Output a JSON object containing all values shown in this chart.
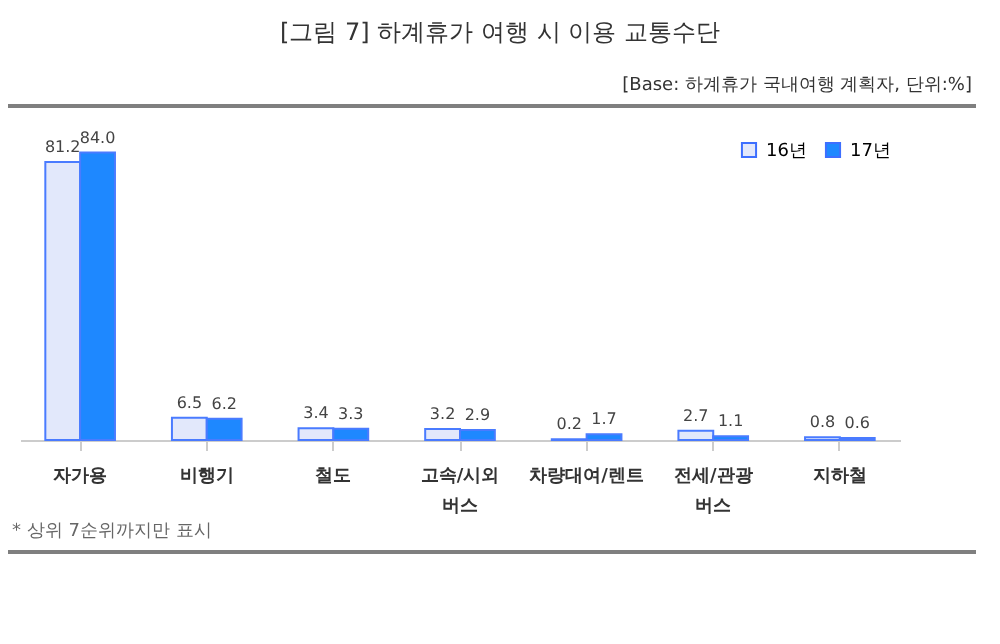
{
  "chart_data": {
    "type": "bar",
    "title": "[그림 7] 하계휴가 여행 시 이용 교통수단",
    "subtitle": "[Base: 하계휴가 국내여행 계획자, 단위:%]",
    "annotations": [
      "* 상위 7순위까지만 표시"
    ],
    "categories": [
      "자가용",
      "비행기",
      "철도",
      "고속/시외\n버스",
      "차량대여/렌트",
      "전세/관광\n버스",
      "지하철"
    ],
    "series": [
      {
        "name": "16년",
        "color": "#e2e8fb",
        "values": [
          81.2,
          6.5,
          3.4,
          3.2,
          0.2,
          2.7,
          0.8
        ],
        "value_labels": [
          "81.2",
          "6.5",
          "3.4",
          "3.2",
          "0.2",
          "2.7",
          "0.8"
        ]
      },
      {
        "name": "17년",
        "color": "#1e88ff",
        "values": [
          84.0,
          6.2,
          3.3,
          2.9,
          1.7,
          1.1,
          0.6
        ],
        "value_labels": [
          "84.0",
          "6.2",
          "3.3",
          "2.9",
          "1.7",
          "1.1",
          "0.6"
        ]
      }
    ],
    "legend": "top right",
    "tick_labels": "x"
  }
}
